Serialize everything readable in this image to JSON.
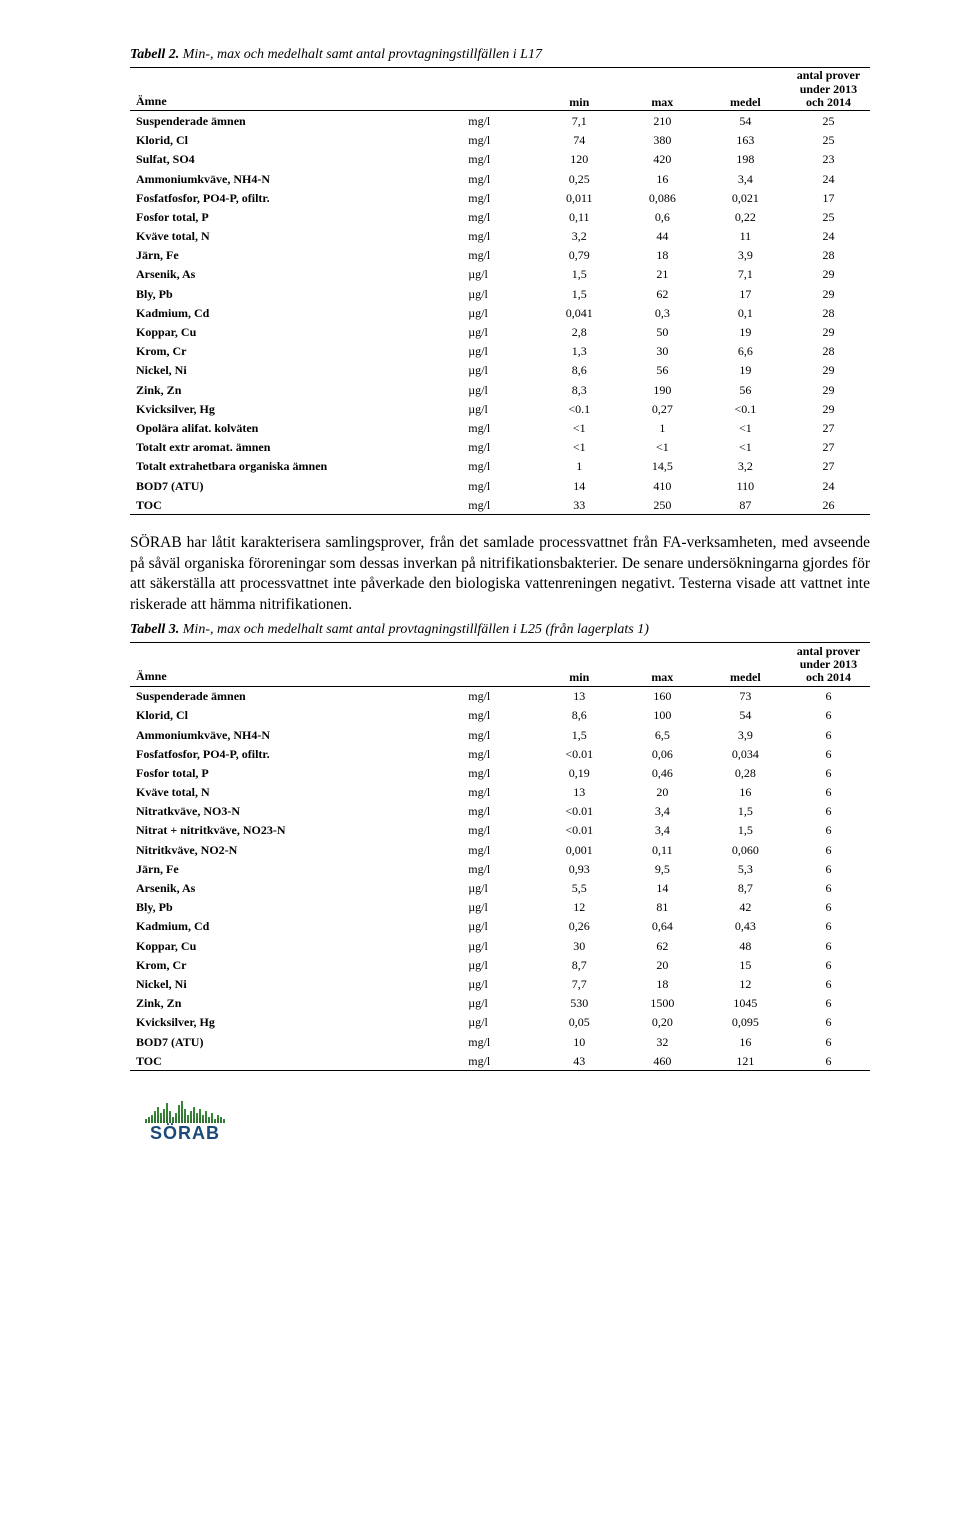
{
  "table2": {
    "caption_label": "Tabell 2.",
    "caption_text": " Min-, max och medelhalt samt antal provtagningstillfällen i L17",
    "head": {
      "c1": "Ämne",
      "c2": "",
      "c3": "min",
      "c4": "max",
      "c5": "medel",
      "c6": "antal prover under 2013 och 2014"
    },
    "rows": [
      {
        "n": "Suspenderade ämnen",
        "u": "mg/l",
        "min": "7,1",
        "max": "210",
        "med": "54",
        "cnt": "25"
      },
      {
        "n": "Klorid, Cl",
        "u": "mg/l",
        "min": "74",
        "max": "380",
        "med": "163",
        "cnt": "25"
      },
      {
        "n": "Sulfat, SO4",
        "u": "mg/l",
        "min": "120",
        "max": "420",
        "med": "198",
        "cnt": "23"
      },
      {
        "n": "Ammoniumkväve, NH4-N",
        "u": "mg/l",
        "min": "0,25",
        "max": "16",
        "med": "3,4",
        "cnt": "24"
      },
      {
        "n": "Fosfatfosfor, PO4-P, ofiltr.",
        "u": "mg/l",
        "min": "0,011",
        "max": "0,086",
        "med": "0,021",
        "cnt": "17"
      },
      {
        "n": "Fosfor total, P",
        "u": "mg/l",
        "min": "0,11",
        "max": "0,6",
        "med": "0,22",
        "cnt": "25"
      },
      {
        "n": "Kväve total, N",
        "u": "mg/l",
        "min": "3,2",
        "max": "44",
        "med": "11",
        "cnt": "24"
      },
      {
        "n": "Järn, Fe",
        "u": "mg/l",
        "min": "0,79",
        "max": "18",
        "med": "3,9",
        "cnt": "28"
      },
      {
        "n": "Arsenik, As",
        "u": "µg/l",
        "min": "1,5",
        "max": "21",
        "med": "7,1",
        "cnt": "29"
      },
      {
        "n": "Bly, Pb",
        "u": "µg/l",
        "min": "1,5",
        "max": "62",
        "med": "17",
        "cnt": "29"
      },
      {
        "n": "Kadmium, Cd",
        "u": "µg/l",
        "min": "0,041",
        "max": "0,3",
        "med": "0,1",
        "cnt": "28"
      },
      {
        "n": "Koppar, Cu",
        "u": "µg/l",
        "min": "2,8",
        "max": "50",
        "med": "19",
        "cnt": "29"
      },
      {
        "n": "Krom, Cr",
        "u": "µg/l",
        "min": "1,3",
        "max": "30",
        "med": "6,6",
        "cnt": "28"
      },
      {
        "n": "Nickel, Ni",
        "u": "µg/l",
        "min": "8,6",
        "max": "56",
        "med": "19",
        "cnt": "29"
      },
      {
        "n": "Zink, Zn",
        "u": "µg/l",
        "min": "8,3",
        "max": "190",
        "med": "56",
        "cnt": "29"
      },
      {
        "n": "Kvicksilver, Hg",
        "u": "µg/l",
        "min": "<0.1",
        "max": "0,27",
        "med": "<0.1",
        "cnt": "29"
      },
      {
        "n": "Opolära alifat. kolväten",
        "u": "mg/l",
        "min": "<1",
        "max": "1",
        "med": "<1",
        "cnt": "27"
      },
      {
        "n": "Totalt extr aromat. ämnen",
        "u": "mg/l",
        "min": "<1",
        "max": "<1",
        "med": "<1",
        "cnt": "27"
      },
      {
        "n": "Totalt extrahetbara organiska ämnen",
        "u": "mg/l",
        "min": "1",
        "max": "14,5",
        "med": "3,2",
        "cnt": "27"
      },
      {
        "n": "BOD7 (ATU)",
        "u": "mg/l",
        "min": "14",
        "max": "410",
        "med": "110",
        "cnt": "24"
      },
      {
        "n": "TOC",
        "u": "mg/l",
        "min": "33",
        "max": "250",
        "med": "87",
        "cnt": "26"
      }
    ]
  },
  "paragraph": "SÖRAB har låtit karakterisera samlingsprover, från det samlade processvattnet från FA-verksamheten, med avseende på såväl organiska föroreningar som dessas inverkan på nitrifikationsbakterier. De senare undersökningarna gjordes för att säkerställa att processvattnet inte påverkade den biologiska vattenreningen negativt. Testerna visade att vattnet inte riskerade att hämma nitrifikationen.",
  "table3": {
    "caption_label": "Tabell 3.",
    "caption_text": " Min-, max och medelhalt samt antal provtagningstillfällen i L25 (från lagerplats 1)",
    "head": {
      "c1": "Ämne",
      "c2": "",
      "c3": "min",
      "c4": "max",
      "c5": "medel",
      "c6": "antal prover under 2013 och 2014"
    },
    "rows": [
      {
        "n": "Suspenderade ämnen",
        "u": "mg/l",
        "min": "13",
        "max": "160",
        "med": "73",
        "cnt": "6"
      },
      {
        "n": "Klorid, Cl",
        "u": "mg/l",
        "min": "8,6",
        "max": "100",
        "med": "54",
        "cnt": "6"
      },
      {
        "n": "Ammoniumkväve, NH4-N",
        "u": "mg/l",
        "min": "1,5",
        "max": "6,5",
        "med": "3,9",
        "cnt": "6"
      },
      {
        "n": "Fosfatfosfor, PO4-P, ofiltr.",
        "u": "mg/l",
        "min": "<0.01",
        "max": "0,06",
        "med": "0,034",
        "cnt": "6"
      },
      {
        "n": "Fosfor total, P",
        "u": "mg/l",
        "min": "0,19",
        "max": "0,46",
        "med": "0,28",
        "cnt": "6"
      },
      {
        "n": "Kväve total, N",
        "u": "mg/l",
        "min": "13",
        "max": "20",
        "med": "16",
        "cnt": "6"
      },
      {
        "n": "Nitratkväve, NO3-N",
        "u": "mg/l",
        "min": "<0.01",
        "max": "3,4",
        "med": "1,5",
        "cnt": "6"
      },
      {
        "n": "Nitrat + nitritkväve, NO23-N",
        "u": "mg/l",
        "min": "<0.01",
        "max": "3,4",
        "med": "1,5",
        "cnt": "6"
      },
      {
        "n": "Nitritkväve, NO2-N",
        "u": "mg/l",
        "min": "0,001",
        "max": "0,11",
        "med": "0,060",
        "cnt": "6"
      },
      {
        "n": "Järn, Fe",
        "u": "mg/l",
        "min": "0,93",
        "max": "9,5",
        "med": "5,3",
        "cnt": "6"
      },
      {
        "n": "Arsenik, As",
        "u": "µg/l",
        "min": "5,5",
        "max": "14",
        "med": "8,7",
        "cnt": "6"
      },
      {
        "n": "Bly, Pb",
        "u": "µg/l",
        "min": "12",
        "max": "81",
        "med": "42",
        "cnt": "6"
      },
      {
        "n": "Kadmium, Cd",
        "u": "µg/l",
        "min": "0,26",
        "max": "0,64",
        "med": "0,43",
        "cnt": "6"
      },
      {
        "n": "Koppar, Cu",
        "u": "µg/l",
        "min": "30",
        "max": "62",
        "med": "48",
        "cnt": "6"
      },
      {
        "n": "Krom, Cr",
        "u": "µg/l",
        "min": "8,7",
        "max": "20",
        "med": "15",
        "cnt": "6"
      },
      {
        "n": "Nickel, Ni",
        "u": "µg/l",
        "min": "7,7",
        "max": "18",
        "med": "12",
        "cnt": "6"
      },
      {
        "n": "Zink, Zn",
        "u": "µg/l",
        "min": "530",
        "max": "1500",
        "med": "1045",
        "cnt": "6"
      },
      {
        "n": "Kvicksilver, Hg",
        "u": "µg/l",
        "min": "0,05",
        "max": "0,20",
        "med": "0,095",
        "cnt": "6"
      },
      {
        "n": "BOD7 (ATU)",
        "u": "mg/l",
        "min": "10",
        "max": "32",
        "med": "16",
        "cnt": "6"
      },
      {
        "n": "TOC",
        "u": "mg/l",
        "min": "43",
        "max": "460",
        "med": "121",
        "cnt": "6"
      }
    ]
  },
  "logo_text": "SÖRAB",
  "style": {
    "body_bg": "#ffffff",
    "text_color": "#000000",
    "table_font_size": 12,
    "body_font_size": 15.5,
    "border_color": "#000000"
  }
}
